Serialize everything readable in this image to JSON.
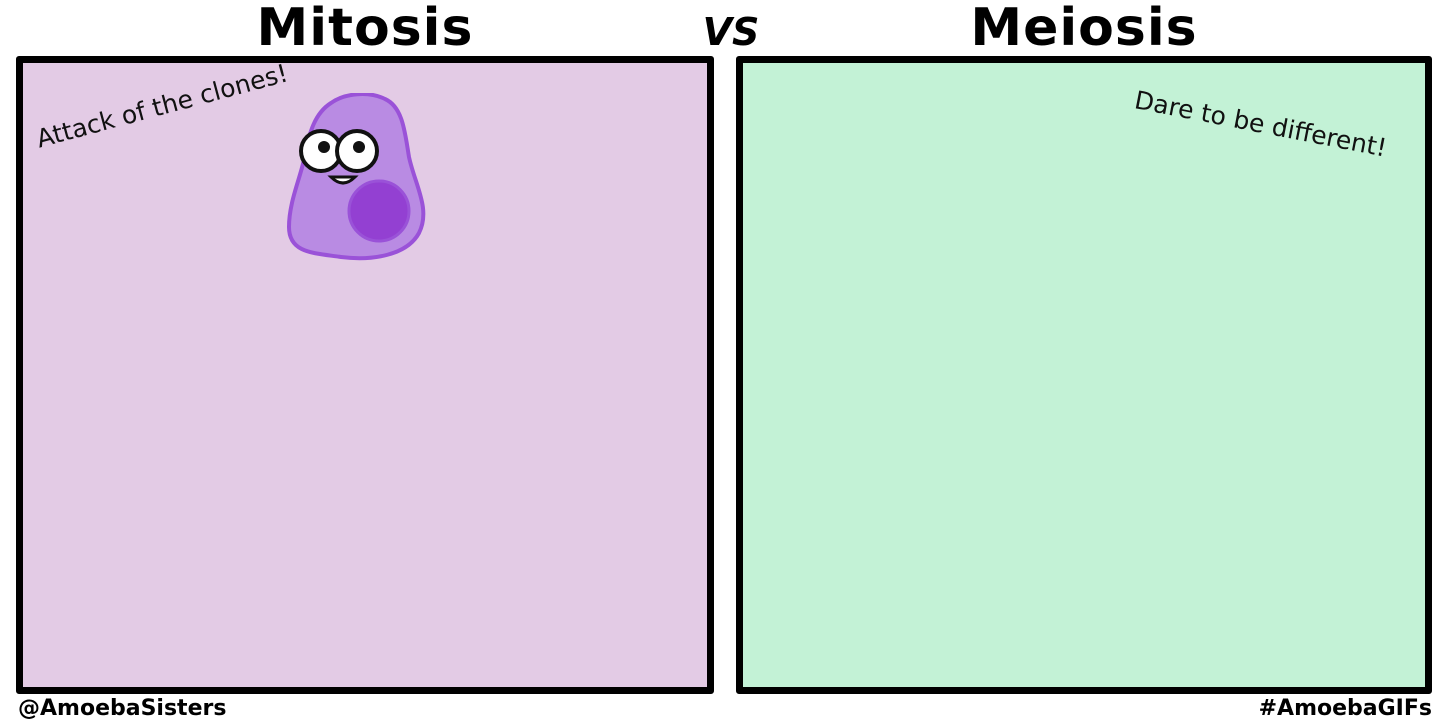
{
  "header": {
    "left_title": "Mitosis",
    "vs_label": "VS",
    "right_title": "Meiosis"
  },
  "panels": {
    "mitosis": {
      "caption": "Attack of the clones!",
      "background": "#e3cbe5"
    },
    "meiosis": {
      "caption": "Dare to be different!",
      "background": "#c3f2d6"
    }
  },
  "amoeba": {
    "icon": "amoeba-character-icon",
    "body_color": "#b98be3",
    "outline_color": "#9a52d8",
    "nucleus_color": "#9340d2"
  },
  "footer": {
    "left": "@AmoebaSisters",
    "right": "#AmoebaGIFs"
  }
}
